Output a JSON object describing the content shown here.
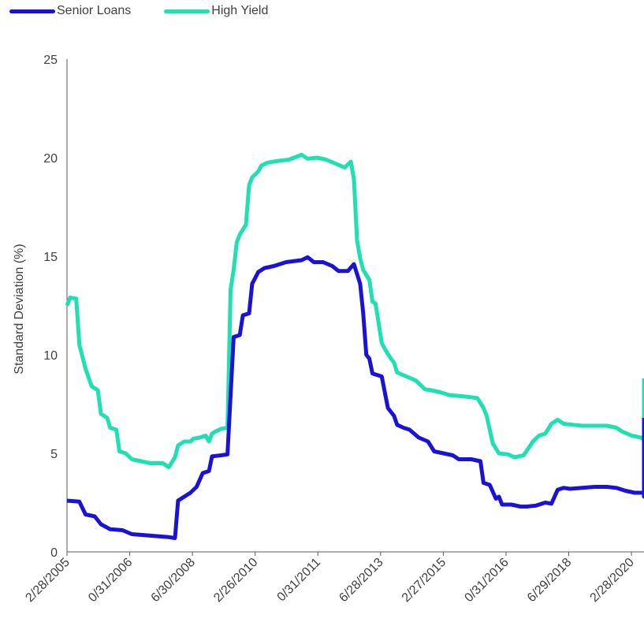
{
  "chart_data": {
    "type": "line",
    "title": "",
    "xlabel": "",
    "ylabel": "Standard Deviation (%)",
    "ylim": [
      0,
      25
    ],
    "yticks": [
      0,
      5,
      10,
      15,
      20,
      25
    ],
    "xticks": [
      "2/28/2005",
      "0/31/2006",
      "6/30/2008",
      "2/26/2010",
      "0/31/2011",
      "6/28/2013",
      "2/27/2015",
      "0/31/2016",
      "6/29/2018",
      "2/28/2020"
    ],
    "x_start": "2005-02",
    "x_end": "2020-09",
    "grid": false,
    "legend_position": "top-left",
    "series": [
      {
        "name": "Senior Loans",
        "color": "#1a12d6",
        "values": [
          [
            "2005-02",
            2.6
          ],
          [
            "2005-06",
            2.55
          ],
          [
            "2005-08",
            1.9
          ],
          [
            "2005-11",
            1.8
          ],
          [
            "2006-01",
            1.4
          ],
          [
            "2006-04",
            1.15
          ],
          [
            "2006-08",
            1.1
          ],
          [
            "2006-11",
            0.9
          ],
          [
            "2007-03",
            0.85
          ],
          [
            "2007-07",
            0.8
          ],
          [
            "2007-11",
            0.75
          ],
          [
            "2008-01",
            0.7
          ],
          [
            "2008-02",
            2.6
          ],
          [
            "2008-04",
            2.8
          ],
          [
            "2008-06",
            3.0
          ],
          [
            "2008-08",
            3.3
          ],
          [
            "2008-10",
            4.0
          ],
          [
            "2008-12",
            4.1
          ],
          [
            "2009-01",
            4.85
          ],
          [
            "2009-04",
            4.9
          ],
          [
            "2009-06",
            4.95
          ],
          [
            "2009-08",
            10.9
          ],
          [
            "2009-10",
            11.0
          ],
          [
            "2009-11",
            12.0
          ],
          [
            "2010-01",
            12.1
          ],
          [
            "2010-02",
            13.6
          ],
          [
            "2010-04",
            14.2
          ],
          [
            "2010-06",
            14.4
          ],
          [
            "2010-09",
            14.5
          ],
          [
            "2011-01",
            14.7
          ],
          [
            "2011-06",
            14.8
          ],
          [
            "2011-08",
            14.95
          ],
          [
            "2011-10",
            14.7
          ],
          [
            "2012-01",
            14.7
          ],
          [
            "2012-04",
            14.5
          ],
          [
            "2012-06",
            14.25
          ],
          [
            "2012-09",
            14.25
          ],
          [
            "2012-11",
            14.6
          ],
          [
            "2013-01",
            13.6
          ],
          [
            "2013-02",
            12.1
          ],
          [
            "2013-03",
            10.0
          ],
          [
            "2013-04",
            9.8
          ],
          [
            "2013-05",
            9.05
          ],
          [
            "2013-08",
            8.9
          ],
          [
            "2013-10",
            7.3
          ],
          [
            "2013-12",
            6.9
          ],
          [
            "2014-01",
            6.45
          ],
          [
            "2014-03",
            6.3
          ],
          [
            "2014-05",
            6.2
          ],
          [
            "2014-08",
            5.8
          ],
          [
            "2014-11",
            5.6
          ],
          [
            "2015-01",
            5.1
          ],
          [
            "2015-04",
            5.0
          ],
          [
            "2015-07",
            4.9
          ],
          [
            "2015-09",
            4.7
          ],
          [
            "2016-01",
            4.7
          ],
          [
            "2016-04",
            4.6
          ],
          [
            "2016-05",
            3.5
          ],
          [
            "2016-07",
            3.4
          ],
          [
            "2016-09",
            2.7
          ],
          [
            "2016-10",
            2.8
          ],
          [
            "2016-11",
            2.4
          ],
          [
            "2017-02",
            2.4
          ],
          [
            "2017-05",
            2.3
          ],
          [
            "2017-07",
            2.3
          ],
          [
            "2017-10",
            2.35
          ],
          [
            "2018-01",
            2.5
          ],
          [
            "2018-03",
            2.45
          ],
          [
            "2018-05",
            3.15
          ],
          [
            "2018-07",
            3.25
          ],
          [
            "2018-09",
            3.2
          ],
          [
            "2019-01",
            3.25
          ],
          [
            "2019-05",
            3.3
          ],
          [
            "2019-09",
            3.3
          ],
          [
            "2019-12",
            3.25
          ],
          [
            "2020-03",
            3.1
          ],
          [
            "2020-06",
            3.0
          ],
          [
            "2020-09",
            3.0
          ],
          [
            "2020-12",
            2.9
          ],
          [
            "2021-02",
            2.8
          ],
          [
            "2021-04",
            2.8
          ],
          [
            "2021-06",
            3.8
          ],
          [
            "2021-07",
            3.75
          ],
          [
            "2021-08",
            3.5
          ],
          [
            "2021-11",
            3.5
          ],
          [
            "2022-03",
            3.5
          ],
          [
            "2022-06",
            3.5
          ],
          [
            "2022-09",
            3.6
          ],
          [
            "2022-10",
            3.8
          ],
          [
            "2022-11",
            6.2
          ],
          [
            "2023-01",
            6.7
          ],
          [
            "2023-03",
            6.75
          ],
          [
            "2023-05",
            6.8
          ]
        ]
      },
      {
        "name": "High Yield",
        "color": "#1ee0b0",
        "values": [
          [
            "2005-02",
            12.5
          ],
          [
            "2005-03",
            12.9
          ],
          [
            "2005-05",
            12.85
          ],
          [
            "2005-06",
            10.5
          ],
          [
            "2005-08",
            9.3
          ],
          [
            "2005-10",
            8.4
          ],
          [
            "2005-12",
            8.2
          ],
          [
            "2006-01",
            7.0
          ],
          [
            "2006-03",
            6.8
          ],
          [
            "2006-04",
            6.3
          ],
          [
            "2006-06",
            6.2
          ],
          [
            "2006-07",
            5.1
          ],
          [
            "2006-09",
            5.0
          ],
          [
            "2006-11",
            4.7
          ],
          [
            "2007-02",
            4.6
          ],
          [
            "2007-05",
            4.5
          ],
          [
            "2007-09",
            4.5
          ],
          [
            "2007-11",
            4.3
          ],
          [
            "2008-01",
            4.8
          ],
          [
            "2008-02",
            5.4
          ],
          [
            "2008-04",
            5.6
          ],
          [
            "2008-06",
            5.6
          ],
          [
            "2008-07",
            5.75
          ],
          [
            "2008-09",
            5.8
          ],
          [
            "2008-11",
            5.9
          ],
          [
            "2008-12",
            5.6
          ],
          [
            "2009-01",
            6.0
          ],
          [
            "2009-02",
            6.1
          ],
          [
            "2009-04",
            6.25
          ],
          [
            "2009-06",
            6.3
          ],
          [
            "2009-07",
            13.3
          ],
          [
            "2009-08",
            14.3
          ],
          [
            "2009-09",
            15.7
          ],
          [
            "2009-10",
            16.1
          ],
          [
            "2009-12",
            16.6
          ],
          [
            "2010-01",
            18.6
          ],
          [
            "2010-02",
            19.0
          ],
          [
            "2010-04",
            19.3
          ],
          [
            "2010-05",
            19.6
          ],
          [
            "2010-07",
            19.75
          ],
          [
            "2010-09",
            19.8
          ],
          [
            "2010-11",
            19.85
          ],
          [
            "2011-02",
            19.9
          ],
          [
            "2011-06",
            20.15
          ],
          [
            "2011-08",
            19.95
          ],
          [
            "2011-11",
            20.0
          ],
          [
            "2012-02",
            19.9
          ],
          [
            "2012-05",
            19.7
          ],
          [
            "2012-08",
            19.5
          ],
          [
            "2012-10",
            19.8
          ],
          [
            "2012-11",
            18.9
          ],
          [
            "2012-12",
            15.8
          ],
          [
            "2013-01",
            14.9
          ],
          [
            "2013-02",
            14.3
          ],
          [
            "2013-04",
            13.8
          ],
          [
            "2013-05",
            12.7
          ],
          [
            "2013-06",
            12.6
          ],
          [
            "2013-08",
            10.6
          ],
          [
            "2013-09",
            10.3
          ],
          [
            "2013-11",
            9.8
          ],
          [
            "2013-12",
            9.6
          ],
          [
            "2014-01",
            9.1
          ],
          [
            "2014-04",
            8.9
          ],
          [
            "2014-07",
            8.7
          ],
          [
            "2014-09",
            8.4
          ],
          [
            "2014-10",
            8.25
          ],
          [
            "2014-12",
            8.2
          ],
          [
            "2015-03",
            8.1
          ],
          [
            "2015-06",
            7.95
          ],
          [
            "2015-10",
            7.9
          ],
          [
            "2016-01",
            7.85
          ],
          [
            "2016-03",
            7.8
          ],
          [
            "2016-05",
            7.3
          ],
          [
            "2016-06",
            6.9
          ],
          [
            "2016-08",
            5.5
          ],
          [
            "2016-10",
            5.0
          ],
          [
            "2017-01",
            4.95
          ],
          [
            "2017-03",
            4.8
          ],
          [
            "2017-06",
            4.9
          ],
          [
            "2017-09",
            5.6
          ],
          [
            "2017-11",
            5.9
          ],
          [
            "2018-01",
            6.0
          ],
          [
            "2018-03",
            6.5
          ],
          [
            "2018-05",
            6.7
          ],
          [
            "2018-07",
            6.5
          ],
          [
            "2018-10",
            6.45
          ],
          [
            "2019-01",
            6.4
          ],
          [
            "2019-04",
            6.4
          ],
          [
            "2019-09",
            6.4
          ],
          [
            "2019-12",
            6.3
          ],
          [
            "2020-02",
            6.1
          ],
          [
            "2020-05",
            5.9
          ],
          [
            "2020-08",
            5.8
          ],
          [
            "2020-11",
            5.7
          ],
          [
            "2021-01",
            5.7
          ],
          [
            "2021-03",
            5.4
          ],
          [
            "2021-05",
            5.0
          ],
          [
            "2021-06",
            4.7
          ],
          [
            "2021-08",
            5.15
          ],
          [
            "2021-09",
            5.2
          ],
          [
            "2021-11",
            4.6
          ],
          [
            "2022-01",
            4.6
          ],
          [
            "2022-03",
            4.5
          ],
          [
            "2022-06",
            4.4
          ],
          [
            "2022-09",
            4.4
          ],
          [
            "2022-10",
            4.6
          ],
          [
            "2022-11",
            7.5
          ],
          [
            "2023-01",
            8.2
          ],
          [
            "2023-03",
            8.5
          ],
          [
            "2023-05",
            8.8
          ]
        ]
      }
    ]
  }
}
